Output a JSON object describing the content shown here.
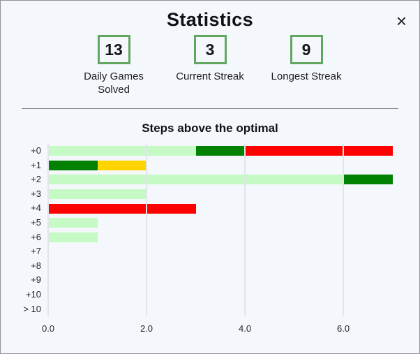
{
  "modal": {
    "title": "Statistics",
    "close_icon": "×"
  },
  "stats": [
    {
      "value": "13",
      "label": "Daily Games Solved"
    },
    {
      "value": "3",
      "label": "Current Streak"
    },
    {
      "value": "9",
      "label": "Longest Streak"
    }
  ],
  "chart_data": {
    "type": "bar",
    "orientation": "horizontal",
    "title": "Steps above the optimal",
    "categories": [
      "+0",
      "+1",
      "+2",
      "+3",
      "+4",
      "+5",
      "+6",
      "+7",
      "+8",
      "+9",
      "+10",
      "> 10"
    ],
    "colors": {
      "pale_green": "#c5fac5",
      "dark_green": "#038103",
      "gold": "#ffd400",
      "red": "#fe0000"
    },
    "bars": [
      {
        "category": "+0",
        "segments": [
          {
            "color": "pale_green",
            "value": 3
          },
          {
            "color": "dark_green",
            "value": 1
          },
          {
            "color": "red",
            "value": 3
          }
        ]
      },
      {
        "category": "+1",
        "segments": [
          {
            "color": "dark_green",
            "value": 1
          },
          {
            "color": "gold",
            "value": 1
          }
        ]
      },
      {
        "category": "+2",
        "segments": [
          {
            "color": "pale_green",
            "value": 6
          },
          {
            "color": "dark_green",
            "value": 1
          }
        ]
      },
      {
        "category": "+3",
        "segments": [
          {
            "color": "pale_green",
            "value": 2
          }
        ]
      },
      {
        "category": "+4",
        "segments": [
          {
            "color": "red",
            "value": 3
          }
        ]
      },
      {
        "category": "+5",
        "segments": [
          {
            "color": "pale_green",
            "value": 1
          }
        ]
      },
      {
        "category": "+6",
        "segments": [
          {
            "color": "pale_green",
            "value": 1
          }
        ]
      },
      {
        "category": "+7",
        "segments": []
      },
      {
        "category": "+8",
        "segments": []
      },
      {
        "category": "+9",
        "segments": []
      },
      {
        "category": "+10",
        "segments": []
      },
      {
        "category": "> 10",
        "segments": []
      }
    ],
    "x_ticks": [
      {
        "label": "0.0",
        "value": 0
      },
      {
        "label": "2.0",
        "value": 2
      },
      {
        "label": "4.0",
        "value": 4
      },
      {
        "label": "6.0",
        "value": 6
      }
    ],
    "xlim": [
      0,
      7.12
    ],
    "grid": "vertical-lines-on-top",
    "legend": "none"
  }
}
